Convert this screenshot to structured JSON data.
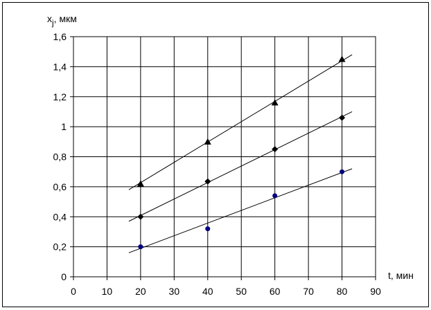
{
  "chart_data": {
    "type": "scatter",
    "ylabel_parts": [
      "x",
      "j",
      ", мкм"
    ],
    "xlabel": "t, мин",
    "xlim": [
      0,
      90
    ],
    "xticks": [
      0,
      10,
      20,
      30,
      40,
      50,
      60,
      70,
      80,
      90
    ],
    "ylim": [
      0,
      1.6
    ],
    "yticks": [
      0,
      {
        "value": 0.2,
        "label": "0,2"
      },
      {
        "value": 0.4,
        "label": "0,4"
      },
      {
        "value": 0.6,
        "label": "0,6"
      },
      {
        "value": 0.8,
        "label": "0,8"
      },
      1,
      {
        "value": 1.2,
        "label": "1,2"
      },
      {
        "value": 1.4,
        "label": "1,4"
      },
      {
        "value": 1.6,
        "label": "1,6"
      }
    ],
    "grid": true,
    "series": [
      {
        "marker": "triangle",
        "color": "#000000",
        "x": [
          20,
          40,
          60,
          80
        ],
        "values": [
          0.62,
          0.9,
          1.16,
          1.45
        ],
        "trend": {
          "x": [
            16.5,
            83
          ],
          "values": [
            0.58,
            1.48
          ]
        }
      },
      {
        "marker": "diamond",
        "color": "#000000",
        "x": [
          20,
          40,
          60,
          80
        ],
        "values": [
          0.4,
          0.635,
          0.85,
          1.06
        ],
        "trend": {
          "x": [
            16.5,
            83
          ],
          "values": [
            0.37,
            1.1
          ]
        }
      },
      {
        "marker": "circle",
        "color": "#000080",
        "x": [
          20,
          40,
          60,
          80
        ],
        "values": [
          0.2,
          0.32,
          0.54,
          0.7
        ],
        "trend": {
          "x": [
            16.5,
            83
          ],
          "values": [
            0.16,
            0.72
          ]
        }
      }
    ]
  }
}
